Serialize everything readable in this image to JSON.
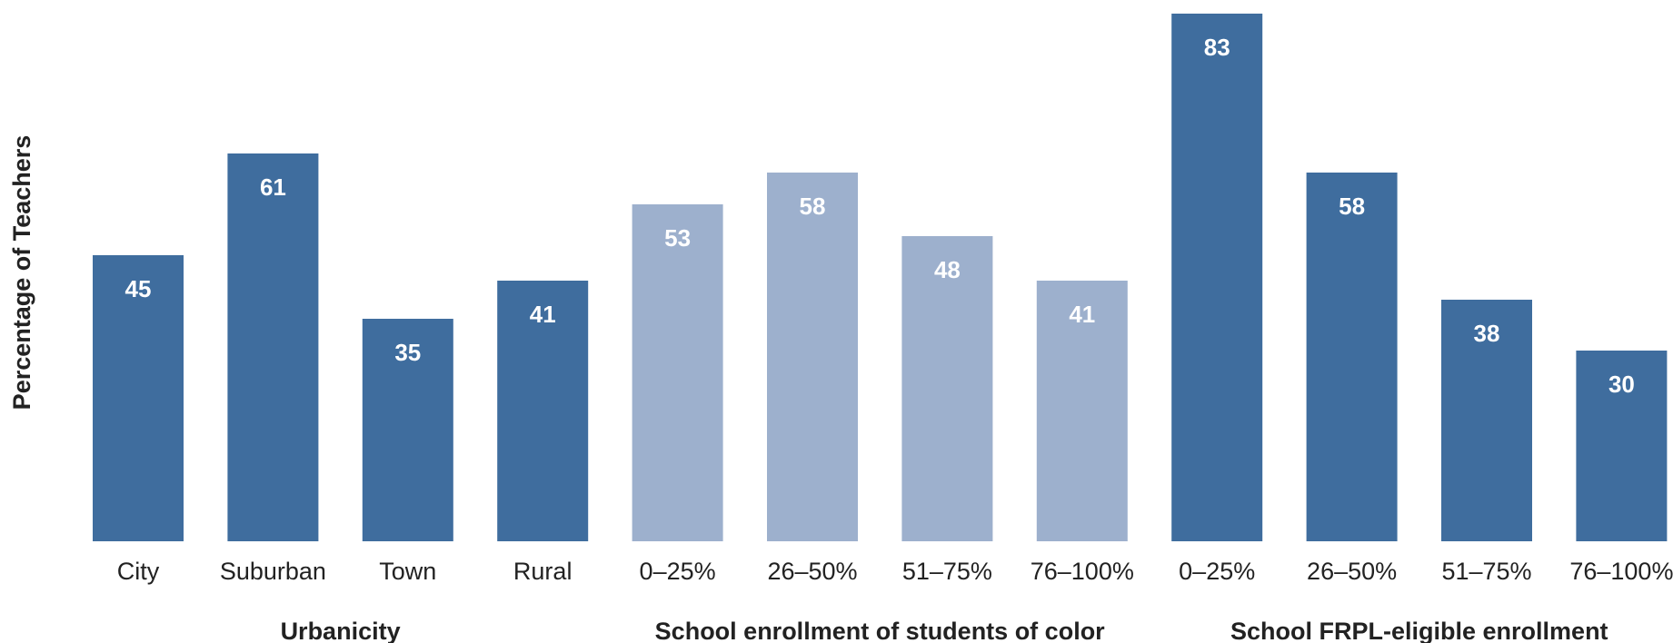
{
  "chart_data": {
    "type": "bar",
    "ylabel": "Percentage of Teachers",
    "ylim": [
      0,
      85
    ],
    "grid": false,
    "value_labels": true,
    "groups": [
      {
        "label": "Urbanicity",
        "color": "#3f6d9e",
        "categories": [
          "City",
          "Suburban",
          "Town",
          "Rural"
        ],
        "values": [
          45,
          61,
          35,
          41
        ]
      },
      {
        "label": "School enrollment of students of color",
        "color": "#9db0cd",
        "categories": [
          "0–25%",
          "26–50%",
          "51–75%",
          "76–100%"
        ],
        "values": [
          53,
          58,
          48,
          41
        ]
      },
      {
        "label": "School FRPL-eligible enrollment",
        "color": "#3f6d9e",
        "categories": [
          "0–25%",
          "26–50%",
          "51–75%",
          "76–100%"
        ],
        "values": [
          83,
          58,
          38,
          30
        ]
      }
    ]
  }
}
